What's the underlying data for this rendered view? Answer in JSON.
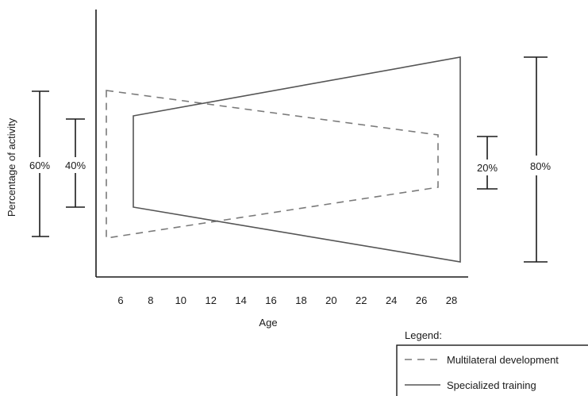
{
  "chart_data": {
    "type": "area",
    "xlabel": "Age",
    "ylabel": "Percentage of activity",
    "x_ticks": [
      "6",
      "8",
      "10",
      "12",
      "14",
      "16",
      "18",
      "20",
      "22",
      "24",
      "26",
      "28"
    ],
    "series": [
      {
        "name": "Multilateral development",
        "style": "dashed",
        "start_age": 5,
        "end_age": 27,
        "start_span": "60%",
        "end_span": "20%"
      },
      {
        "name": "Specialized training",
        "style": "solid",
        "start_age": 7,
        "end_age": 28,
        "start_span": "40%",
        "end_span": "80%"
      }
    ],
    "span_labels": {
      "left_outer": "60%",
      "left_inner": "40%",
      "right_inner": "20%",
      "right_outer": "80%"
    },
    "legend": {
      "title": "Legend:",
      "placement": "bottom-right"
    }
  },
  "colors": {
    "axis": "#1a1a1a",
    "multilateral": "#7a7a7a",
    "specialized": "#555555"
  }
}
